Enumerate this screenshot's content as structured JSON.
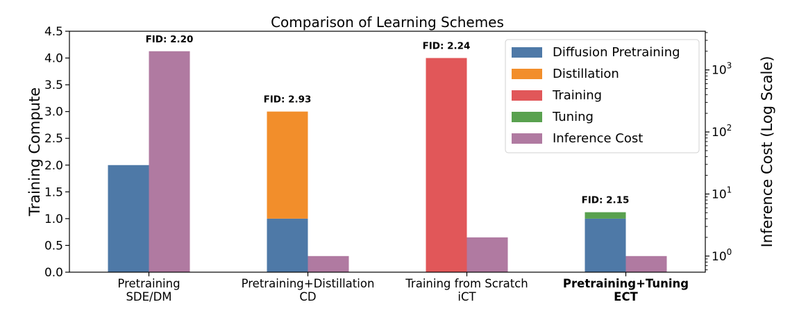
{
  "chart_data": {
    "type": "bar",
    "title": "Comparison of Learning Schemes",
    "ylabel": "Training Compute",
    "y2label": "Inference Cost (Log Scale)",
    "ylim": [
      0,
      4.5
    ],
    "yticks": [
      "0.0",
      "0.5",
      "1.0",
      "1.5",
      "2.0",
      "2.5",
      "3.0",
      "3.5",
      "4.0",
      "4.5"
    ],
    "y2scale": "log",
    "y2lim": [
      0.55,
      4200
    ],
    "y2ticks": [
      {
        "value": 1,
        "base": "10",
        "exp": "0"
      },
      {
        "value": 10,
        "base": "10",
        "exp": "1"
      },
      {
        "value": 100,
        "base": "10",
        "exp": "2"
      },
      {
        "value": 1000,
        "base": "10",
        "exp": "3"
      }
    ],
    "categories": [
      {
        "line1": "Pretraining",
        "line2": "SDE/DM",
        "bold": false
      },
      {
        "line1": "Pretraining+Distillation",
        "line2": "CD",
        "bold": false
      },
      {
        "line1": "Training from Scratch",
        "line2": "iCT",
        "bold": false
      },
      {
        "line1": "Pretraining+Tuning",
        "line2": "ECT",
        "bold": true
      }
    ],
    "training_stacks": [
      [
        {
          "series": "Diffusion Pretraining",
          "value": 2.0
        }
      ],
      [
        {
          "series": "Diffusion Pretraining",
          "value": 1.0
        },
        {
          "series": "Distillation",
          "value": 2.0
        }
      ],
      [
        {
          "series": "Training",
          "value": 4.0
        }
      ],
      [
        {
          "series": "Diffusion Pretraining",
          "value": 1.0
        },
        {
          "series": "Tuning",
          "value": 0.12
        }
      ]
    ],
    "inference_cost": [
      2000,
      1,
      2,
      1
    ],
    "fid_labels": [
      "FID: 2.20",
      "FID: 2.93",
      "FID: 2.24",
      "FID: 2.15"
    ],
    "series": [
      {
        "name": "Diffusion Pretraining",
        "color": "#4e79a7"
      },
      {
        "name": "Distillation",
        "color": "#f28e2b"
      },
      {
        "name": "Training",
        "color": "#e15759"
      },
      {
        "name": "Tuning",
        "color": "#59a14f"
      },
      {
        "name": "Inference Cost",
        "color": "#b07aa1"
      }
    ],
    "legend_position": "upper right",
    "grid": false
  }
}
